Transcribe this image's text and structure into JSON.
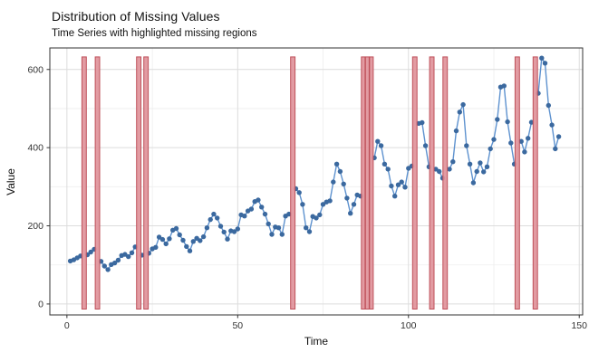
{
  "header": {
    "title": "Distribution of Missing Values",
    "subtitle": "Time Series with highlighted missing regions"
  },
  "chart_data": {
    "type": "line",
    "title": "Distribution of Missing Values",
    "subtitle": "Time Series with highlighted missing regions",
    "xlabel": "Time",
    "ylabel": "Value",
    "xlim": [
      -5,
      151
    ],
    "ylim": [
      -28,
      655
    ],
    "x_major_ticks": [
      0,
      50,
      100,
      150
    ],
    "x_minor_gridlines": [
      25,
      75,
      125
    ],
    "y_major_ticks": [
      0,
      200,
      400,
      600
    ],
    "y_minor_gridlines": [
      100,
      300,
      500
    ],
    "grid": "major+minor, light gray on white panel, dark panel border",
    "legend": "none",
    "series": [
      {
        "name": "value",
        "t_start": 1,
        "t_step": 1,
        "values": [
          110,
          113,
          118,
          123,
          null,
          126,
          133,
          140,
          null,
          109,
          97,
          88,
          101,
          105,
          112,
          124,
          127,
          121,
          131,
          146,
          null,
          125,
          null,
          130,
          141,
          145,
          171,
          165,
          154,
          167,
          189,
          193,
          177,
          163,
          147,
          136,
          160,
          168,
          162,
          172,
          195,
          216,
          230,
          220,
          199,
          184,
          166,
          187,
          185,
          192,
          228,
          225,
          238,
          243,
          262,
          266,
          248,
          230,
          205,
          178,
          197,
          195,
          178,
          225,
          230,
          null,
          295,
          285,
          255,
          195,
          185,
          224,
          220,
          228,
          255,
          261,
          264,
          312,
          358,
          339,
          307,
          271,
          232,
          255,
          279,
          276,
          null,
          null,
          null,
          374,
          416,
          405,
          358,
          345,
          302,
          276,
          305,
          312,
          299,
          347,
          353,
          null,
          462,
          464,
          405,
          351,
          null,
          345,
          339,
          322,
          null,
          345,
          364,
          443,
          491,
          510,
          405,
          358,
          310,
          339,
          361,
          338,
          351,
          397,
          421,
          472,
          555,
          558,
          466,
          412,
          358,
          null,
          416,
          389,
          424,
          465,
          null,
          539,
          629,
          616,
          508,
          458,
          397,
          428
        ]
      }
    ],
    "missing_times": [
      5,
      9,
      21,
      23,
      66,
      87,
      88,
      89,
      102,
      107,
      111,
      132,
      137
    ],
    "missing_regions": [
      [
        4.4,
        5.7
      ],
      [
        8.3,
        9.6
      ],
      [
        20.4,
        21.7
      ],
      [
        22.5,
        23.8
      ],
      [
        65.5,
        66.8
      ],
      [
        86.2,
        87.3
      ],
      [
        87.4,
        88.5
      ],
      [
        88.6,
        89.7
      ],
      [
        101.2,
        102.5
      ],
      [
        106.2,
        107.5
      ],
      [
        110.1,
        111.4
      ],
      [
        131.2,
        132.5
      ],
      [
        136.5,
        137.8
      ]
    ],
    "region_value_span": [
      -13,
      632
    ],
    "colors": {
      "line": "#5e92cf",
      "point": "#3b699f",
      "region_fill": "#e0929a",
      "region_border": "#bf505a",
      "grid_major": "#dcdcdc",
      "grid_minor": "#eeeeee",
      "panel_border": "#333333",
      "text": "#111111",
      "tick_text": "#333333"
    }
  }
}
